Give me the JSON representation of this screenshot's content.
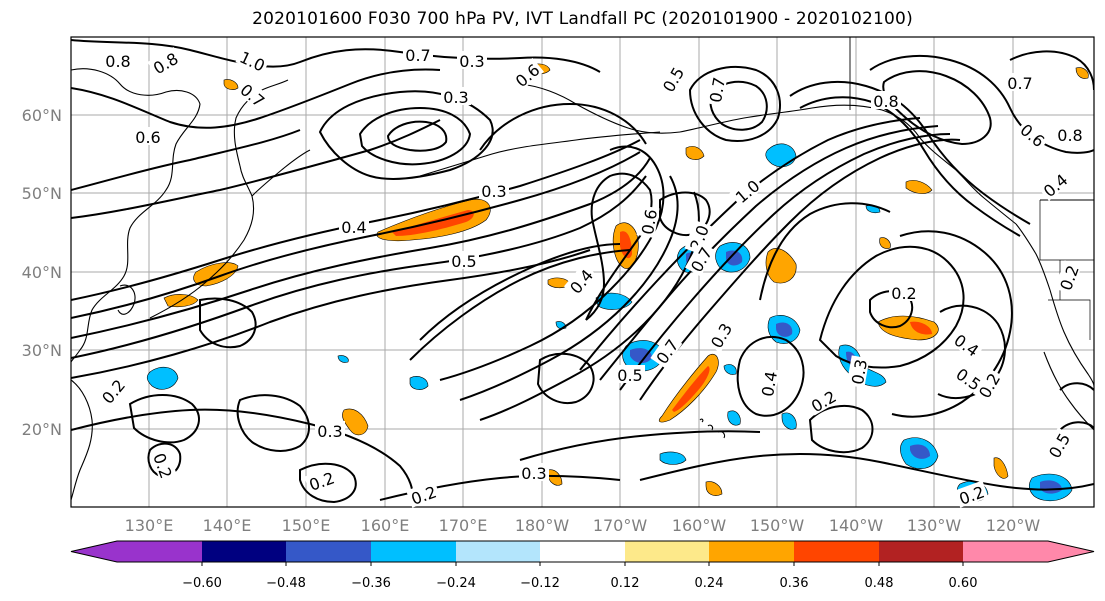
{
  "title": "2020101600 F030 700 hPa PV, IVT Landfall PC (2020101900 - 2020102100)",
  "map": {
    "latitude_labels": [
      "60°N",
      "50°N",
      "40°N",
      "30°N",
      "20°N"
    ],
    "longitude_labels": [
      "130°E",
      "140°E",
      "150°E",
      "160°E",
      "170°E",
      "180°W",
      "170°W",
      "160°W",
      "150°W",
      "140°W",
      "130°W",
      "120°W"
    ],
    "contour_labels": [
      "0.8",
      "0.8",
      "1.0",
      "0.7",
      "0.6",
      "0.7",
      "0.3",
      "0.6",
      "0.5",
      "0.3",
      "0.8",
      "0.7",
      "0.6",
      "0.8",
      "0.7",
      "0.4",
      "0.3",
      "0.4",
      "0.5",
      "1.0",
      "0.6",
      "2.0",
      "0.7",
      "0.4",
      "0.7",
      "0.5",
      "0.3",
      "0.2",
      "0.4",
      "0.5",
      "0.4",
      "0.2",
      "0.3",
      "0.2",
      "0.5",
      "0.3",
      "0.2",
      "0.2",
      "0.3",
      "0.2",
      "0.2",
      "0.2",
      "0.2"
    ],
    "colors": {
      "coastline": "#000000",
      "gridline": "#aaaaaa",
      "contour": "#000000"
    }
  },
  "colorbar": {
    "tick_labels": [
      "−0.60",
      "−0.48",
      "−0.36",
      "−0.24",
      "−0.12",
      "0.12",
      "0.24",
      "0.36",
      "0.48",
      "0.60"
    ],
    "colors": [
      "#9933cc",
      "#000080",
      "#3558c8",
      "#00bfff",
      "#b3e5fc",
      "#ffffff",
      "#fde98a",
      "#ffa500",
      "#ff4500",
      "#b22222",
      "#ff88aa"
    ]
  }
}
